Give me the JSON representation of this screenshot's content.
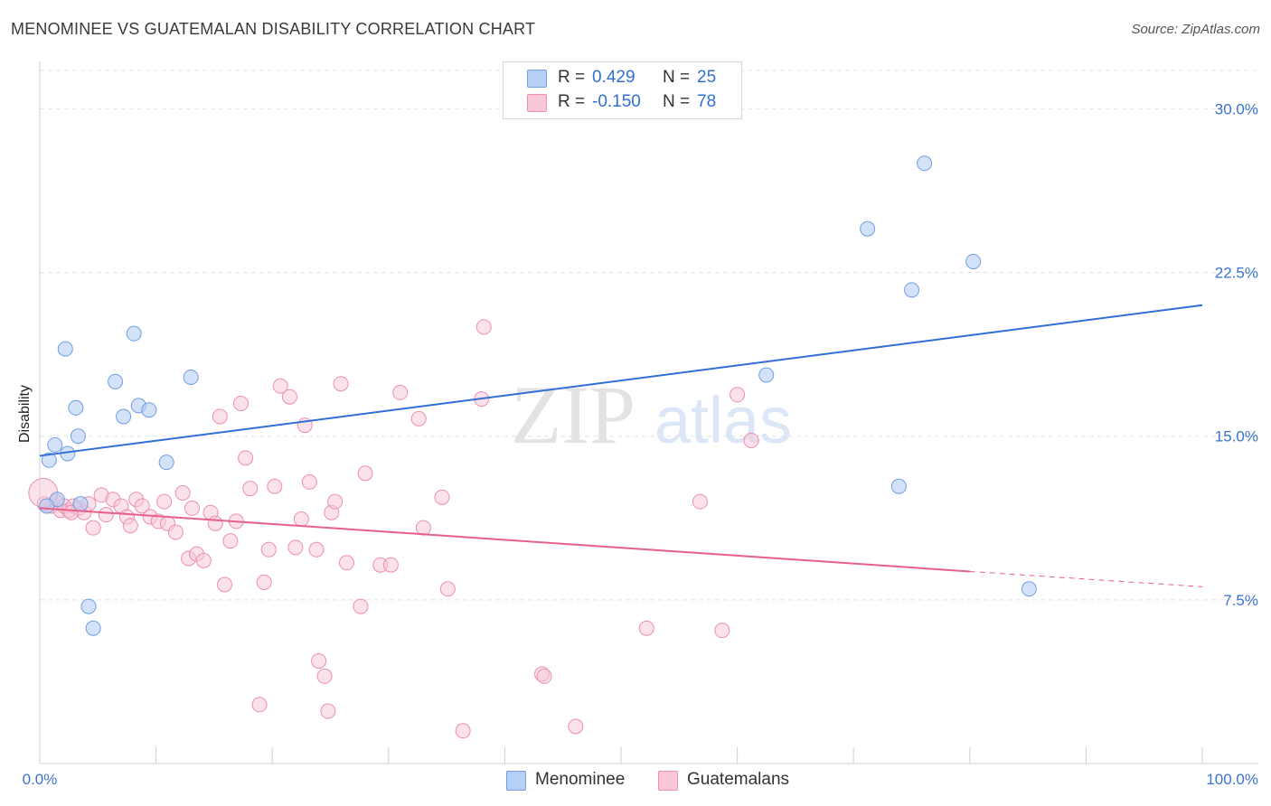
{
  "header": {
    "title": "MENOMINEE VS GUATEMALAN DISABILITY CORRELATION CHART",
    "source": "Source: ZipAtlas.com"
  },
  "watermark": {
    "zip": "ZIP",
    "atlas": "atlas"
  },
  "legend": {
    "rows": [
      {
        "r_label": "R =",
        "r_value": "0.429",
        "n_label": "N =",
        "n_value": "25"
      },
      {
        "r_label": "R =",
        "r_value": "-0.150",
        "n_label": "N =",
        "n_value": "78"
      }
    ]
  },
  "bottom_legend": {
    "series1": "Menominee",
    "series2": "Guatemalans"
  },
  "colors": {
    "blue_fill": "#b5cff5",
    "blue_stroke": "#6f9fe0",
    "blue_line": "#2f6fd6",
    "pink_fill": "#f8c8d8",
    "pink_stroke": "#ec8fb0",
    "pink_line": "#e8608a",
    "tick_text": "#3b73cc"
  },
  "chart_data": {
    "type": "scatter",
    "title": "MENOMINEE VS GUATEMALAN DISABILITY CORRELATION CHART",
    "xlabel": "",
    "ylabel": "Disability",
    "xlim": [
      0,
      100
    ],
    "ylim": [
      0,
      32.5
    ],
    "x_tick_labels": [
      "0.0%",
      "100.0%"
    ],
    "y_ticks": [
      7.5,
      15.0,
      22.5,
      30.0
    ],
    "y_tick_labels": [
      "7.5%",
      "15.0%",
      "22.5%",
      "30.0%"
    ],
    "grid": true,
    "series": [
      {
        "name": "Menominee",
        "trend": {
          "x": [
            0,
            100
          ],
          "y": [
            14.1,
            21.0
          ]
        },
        "points": [
          [
            0.8,
            13.9
          ],
          [
            1.3,
            14.6
          ],
          [
            1.5,
            12.1
          ],
          [
            2.2,
            19.0
          ],
          [
            2.4,
            14.2
          ],
          [
            3.1,
            16.3
          ],
          [
            3.3,
            15.0
          ],
          [
            3.5,
            11.9
          ],
          [
            4.2,
            7.2
          ],
          [
            4.6,
            6.2
          ],
          [
            6.5,
            17.5
          ],
          [
            7.2,
            15.9
          ],
          [
            8.1,
            19.7
          ],
          [
            8.5,
            16.4
          ],
          [
            9.4,
            16.2
          ],
          [
            10.9,
            13.8
          ],
          [
            13.0,
            17.7
          ],
          [
            0.6,
            11.8
          ],
          [
            62.5,
            17.8
          ],
          [
            71.2,
            24.5
          ],
          [
            73.9,
            12.7
          ],
          [
            75.0,
            21.7
          ],
          [
            76.1,
            27.5
          ],
          [
            80.3,
            23.0
          ],
          [
            85.1,
            8.0
          ]
        ]
      },
      {
        "name": "Guatemalans",
        "trend": {
          "x": [
            0,
            80
          ],
          "y": [
            11.7,
            8.8
          ]
        },
        "trend_dashed": {
          "x": [
            80,
            100
          ],
          "y": [
            8.8,
            8.1
          ]
        },
        "points": [
          [
            0.4,
            11.9
          ],
          [
            1.0,
            11.8
          ],
          [
            1.4,
            12.0
          ],
          [
            1.8,
            11.6
          ],
          [
            2.1,
            11.8
          ],
          [
            2.5,
            11.6
          ],
          [
            2.9,
            11.8
          ],
          [
            3.4,
            11.7
          ],
          [
            3.8,
            11.5
          ],
          [
            4.2,
            11.9
          ],
          [
            4.6,
            10.8
          ],
          [
            5.3,
            12.3
          ],
          [
            5.7,
            11.4
          ],
          [
            6.3,
            12.1
          ],
          [
            7.0,
            11.8
          ],
          [
            7.5,
            11.3
          ],
          [
            7.8,
            10.9
          ],
          [
            8.3,
            12.1
          ],
          [
            8.8,
            11.8
          ],
          [
            9.5,
            11.3
          ],
          [
            10.2,
            11.1
          ],
          [
            10.7,
            12.0
          ],
          [
            11.0,
            11.0
          ],
          [
            11.7,
            10.6
          ],
          [
            12.3,
            12.4
          ],
          [
            12.8,
            9.4
          ],
          [
            13.1,
            11.7
          ],
          [
            13.5,
            9.6
          ],
          [
            14.1,
            9.3
          ],
          [
            14.7,
            11.5
          ],
          [
            15.1,
            11.0
          ],
          [
            15.5,
            15.9
          ],
          [
            15.9,
            8.2
          ],
          [
            16.4,
            10.2
          ],
          [
            16.9,
            11.1
          ],
          [
            17.3,
            16.5
          ],
          [
            17.7,
            14.0
          ],
          [
            18.1,
            12.6
          ],
          [
            18.9,
            2.7
          ],
          [
            19.3,
            8.3
          ],
          [
            19.7,
            9.8
          ],
          [
            20.2,
            12.7
          ],
          [
            20.7,
            17.3
          ],
          [
            21.5,
            16.8
          ],
          [
            22.0,
            9.9
          ],
          [
            22.5,
            11.2
          ],
          [
            22.8,
            15.5
          ],
          [
            23.2,
            12.9
          ],
          [
            23.8,
            9.8
          ],
          [
            24.0,
            4.7
          ],
          [
            24.5,
            4.0
          ],
          [
            24.8,
            2.4
          ],
          [
            25.1,
            11.5
          ],
          [
            25.4,
            12.0
          ],
          [
            25.9,
            17.4
          ],
          [
            26.4,
            9.2
          ],
          [
            27.6,
            7.2
          ],
          [
            28.0,
            13.3
          ],
          [
            29.3,
            9.1
          ],
          [
            30.2,
            9.1
          ],
          [
            31.0,
            17.0
          ],
          [
            32.6,
            15.8
          ],
          [
            33.0,
            10.8
          ],
          [
            34.6,
            12.2
          ],
          [
            35.1,
            8.0
          ],
          [
            36.4,
            1.5
          ],
          [
            38.0,
            16.7
          ],
          [
            38.2,
            20.0
          ],
          [
            43.2,
            4.1
          ],
          [
            43.4,
            4.0
          ],
          [
            46.1,
            1.7
          ],
          [
            52.2,
            6.2
          ],
          [
            56.8,
            12.0
          ],
          [
            58.7,
            6.1
          ],
          [
            60.0,
            16.9
          ],
          [
            61.2,
            14.8
          ],
          [
            0.3,
            12.4
          ],
          [
            2.7,
            11.5
          ]
        ]
      }
    ]
  }
}
